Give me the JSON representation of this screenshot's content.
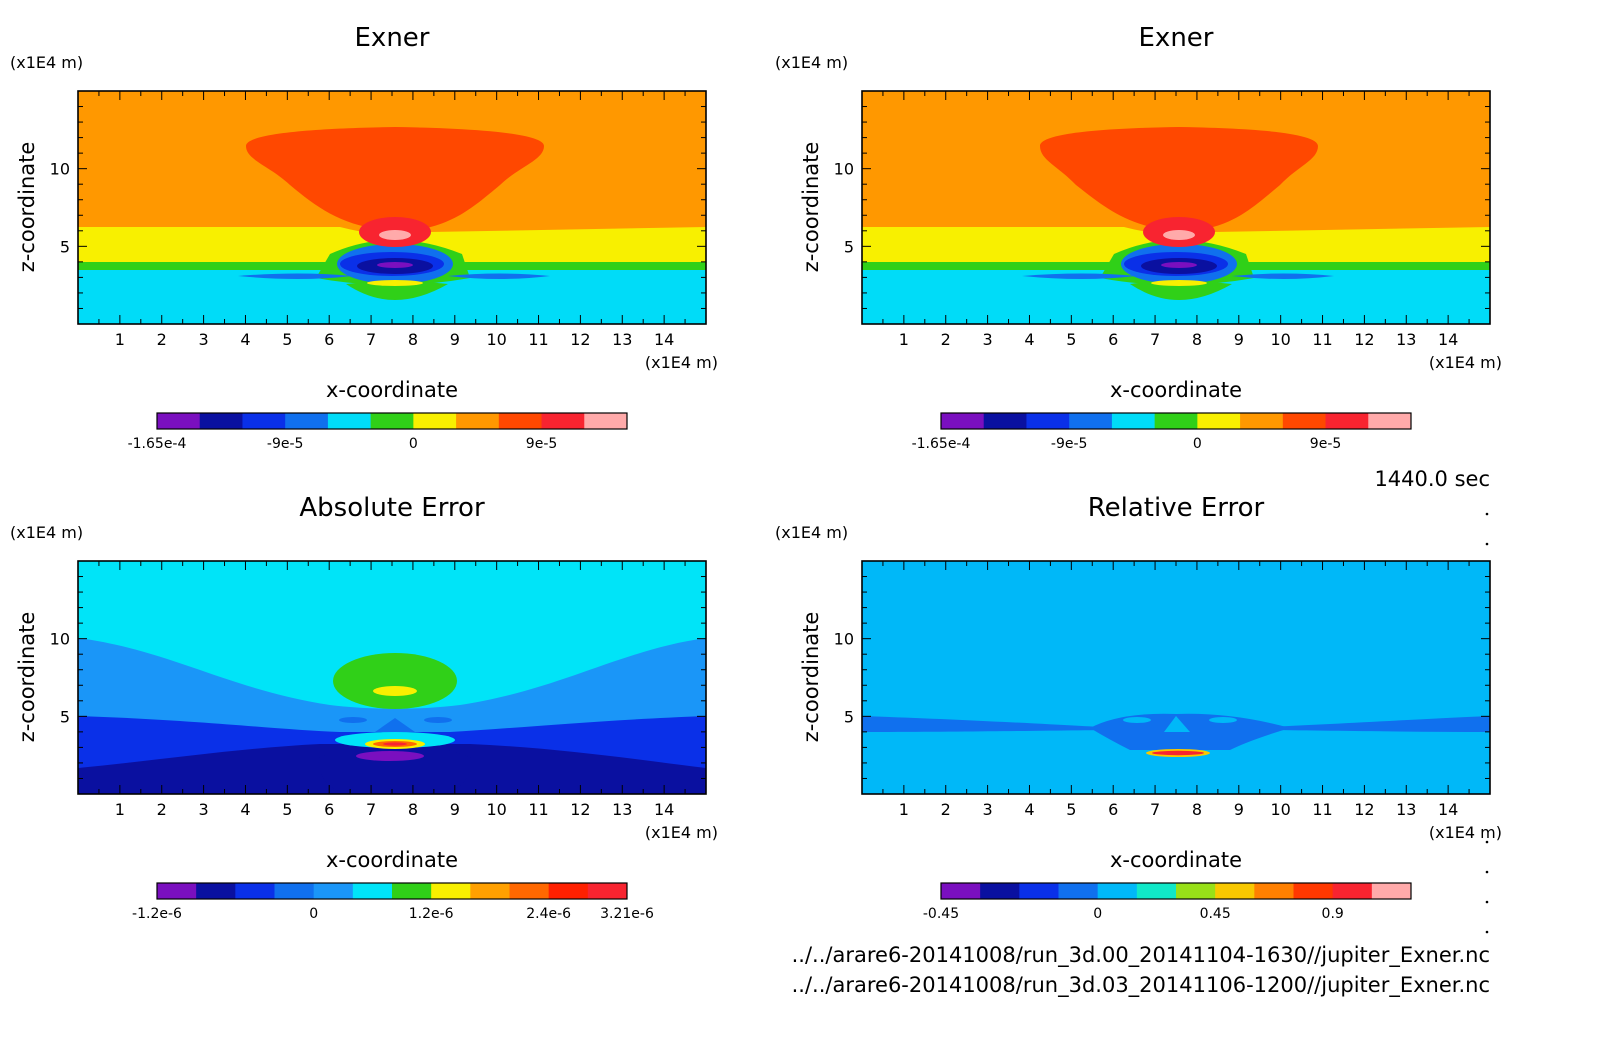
{
  "figure_info": {
    "time": "1440.0 sec",
    "files": [
      "../../arare6-20141008/run_3d.00_20141104-1630//jupiter_Exner.nc",
      "../../arare6-20141008/run_3d.03_20141106-1200//jupiter_Exner.nc"
    ]
  },
  "chart_data": [
    {
      "type": "heatmap",
      "title": "Exner",
      "xlabel": "x-coordinate",
      "ylabel": "z-coordinate",
      "x_unit": "(x1E4 m)",
      "y_unit": "(x1E4 m)",
      "xlim": [
        0,
        15
      ],
      "ylim": [
        0,
        15
      ],
      "x_ticks": [
        "1",
        "2",
        "3",
        "4",
        "5",
        "6",
        "7",
        "8",
        "9",
        "10",
        "11",
        "12",
        "13",
        "14"
      ],
      "y_ticks": [
        "5",
        "10"
      ],
      "colorbar": {
        "colors": [
          "#7a0fbf",
          "#0a10a0",
          "#0a30e8",
          "#1070ee",
          "#00dcf8",
          "#30d018",
          "#f8f000",
          "#ff9800",
          "#ff4800",
          "#f82430",
          "#ffaaaa"
        ],
        "labels": [
          "-1.65e-4",
          "-9e-5",
          "0",
          "9e-5"
        ]
      }
    },
    {
      "type": "heatmap",
      "title": "Exner",
      "xlabel": "x-coordinate",
      "ylabel": "z-coordinate",
      "x_unit": "(x1E4 m)",
      "y_unit": "(x1E4 m)",
      "xlim": [
        0,
        15
      ],
      "ylim": [
        0,
        15
      ],
      "x_ticks": [
        "1",
        "2",
        "3",
        "4",
        "5",
        "6",
        "7",
        "8",
        "9",
        "10",
        "11",
        "12",
        "13",
        "14"
      ],
      "y_ticks": [
        "5",
        "10"
      ],
      "colorbar": {
        "colors": [
          "#7a0fbf",
          "#0a10a0",
          "#0a30e8",
          "#1070ee",
          "#00dcf8",
          "#30d018",
          "#f8f000",
          "#ff9800",
          "#ff4800",
          "#f82430",
          "#ffaaaa"
        ],
        "labels": [
          "-1.65e-4",
          "-9e-5",
          "0",
          "9e-5"
        ]
      }
    },
    {
      "type": "heatmap",
      "title": "Absolute Error",
      "xlabel": "x-coordinate",
      "ylabel": "z-coordinate",
      "x_unit": "(x1E4 m)",
      "y_unit": "(x1E4 m)",
      "xlim": [
        0,
        15
      ],
      "ylim": [
        0,
        15
      ],
      "x_ticks": [
        "1",
        "2",
        "3",
        "4",
        "5",
        "6",
        "7",
        "8",
        "9",
        "10",
        "11",
        "12",
        "13",
        "14"
      ],
      "y_ticks": [
        "5",
        "10"
      ],
      "colorbar": {
        "colors": [
          "#7a0fbf",
          "#0a10a0",
          "#0a30e8",
          "#1070ee",
          "#1a96f8",
          "#00e4f8",
          "#30d018",
          "#f8f000",
          "#ffa000",
          "#ff6800",
          "#ff2000",
          "#f82430"
        ],
        "labels": [
          "-1.2e-6",
          "0",
          "1.2e-6",
          "2.4e-6",
          "3.21e-6"
        ]
      }
    },
    {
      "type": "heatmap",
      "title": "Relative Error",
      "xlabel": "x-coordinate",
      "ylabel": "z-coordinate",
      "x_unit": "(x1E4 m)",
      "y_unit": "(x1E4 m)",
      "xlim": [
        0,
        15
      ],
      "ylim": [
        0,
        15
      ],
      "x_ticks": [
        "1",
        "2",
        "3",
        "4",
        "5",
        "6",
        "7",
        "8",
        "9",
        "10",
        "11",
        "12",
        "13",
        "14"
      ],
      "y_ticks": [
        "5",
        "10"
      ],
      "colorbar": {
        "colors": [
          "#7a0fbf",
          "#0a10a0",
          "#0a30e8",
          "#1070ee",
          "#00b8f8",
          "#10e8c8",
          "#98e018",
          "#f8c800",
          "#ff8000",
          "#ff3800",
          "#f82430",
          "#ffaaaa"
        ],
        "labels": [
          "-0.45",
          "0",
          "0.45",
          "0.9"
        ]
      }
    }
  ]
}
